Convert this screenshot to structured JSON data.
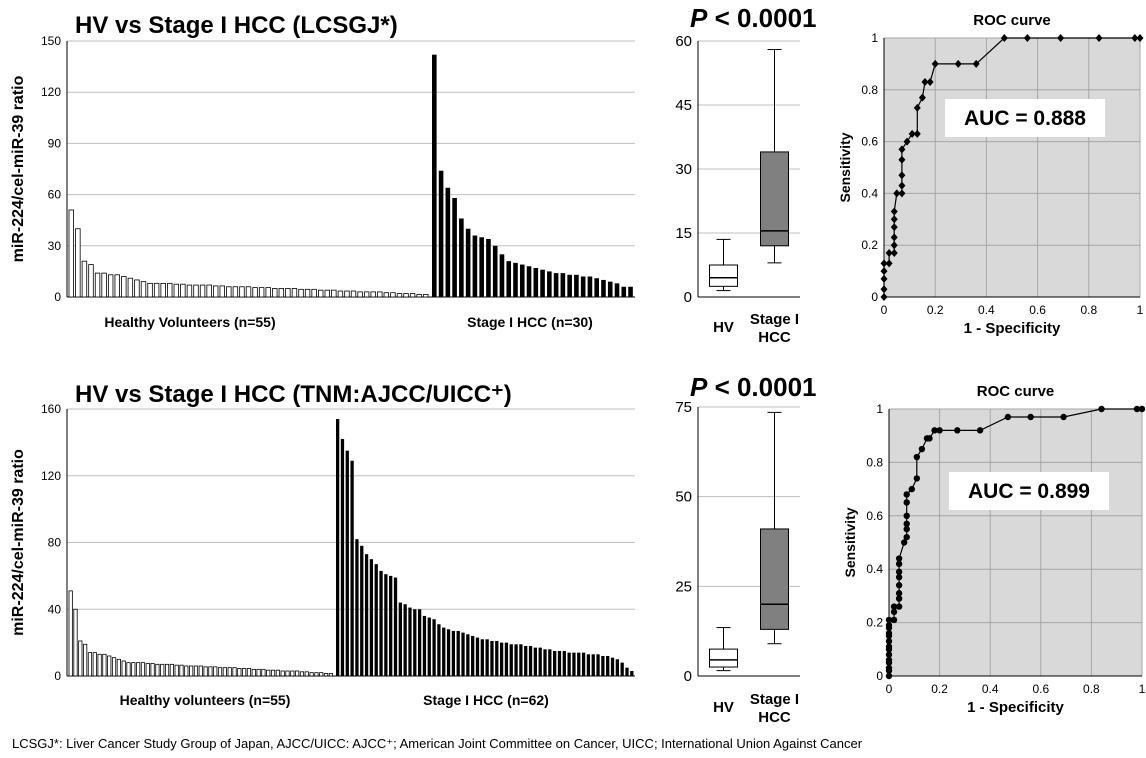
{
  "footnote": "LCSGJ*: Liver Cancer Study Group of Japan, AJCC/UICC: AJCC⁺; American Joint Committee on Cancer, UICC; International Union Against Cancer",
  "colors": {
    "hv_bar": "#ffffff",
    "hcc_bar": "#000000",
    "hcc_box": "#808080",
    "roc_bg": "#d9d9d9",
    "grid": "#bfbfbf"
  },
  "chart_data": [
    {
      "type": "bar",
      "title": "HV vs Stage I HCC (LCSGJ*)",
      "ylabel": "miR-224/cel-miR-39 ratio",
      "ylim": [
        0,
        150
      ],
      "yticks": [
        "0",
        "30",
        "60",
        "90",
        "120",
        "150"
      ],
      "grid": true,
      "series": [
        {
          "name": "Healthy Volunteers (n=55)",
          "values": [
            51,
            40,
            21,
            19,
            14,
            14,
            13,
            13,
            12,
            11,
            10,
            9,
            8,
            8,
            8,
            8,
            7.5,
            7.5,
            7,
            7,
            7,
            7,
            6.5,
            6.5,
            6,
            6,
            6,
            6,
            5.5,
            5.5,
            5.5,
            5,
            5,
            5,
            5,
            4.5,
            4.5,
            4.5,
            4,
            4,
            4,
            3.5,
            3.5,
            3.5,
            3,
            3,
            3,
            3,
            2.5,
            2.5,
            2,
            2,
            2,
            1.5,
            1.5
          ]
        },
        {
          "name": "Stage I HCC (n=30)",
          "values": [
            142,
            74,
            64,
            58,
            46,
            40,
            36,
            35,
            34,
            30,
            25,
            21,
            20,
            19,
            18,
            17,
            16,
            15,
            14,
            14,
            13,
            13,
            12,
            12,
            11,
            10,
            9,
            8,
            6,
            6
          ]
        }
      ]
    },
    {
      "type": "box",
      "title": "P < 0.0001",
      "ylim": [
        0,
        60
      ],
      "yticks": [
        "0",
        "15",
        "30",
        "45",
        "60"
      ],
      "categories": [
        "HV",
        "Stage I HCC"
      ],
      "boxes": [
        {
          "name": "HV",
          "min": 1.5,
          "q1": 2.5,
          "median": 4.5,
          "q3": 7.5,
          "max": 13.5
        },
        {
          "name": "Stage I HCC",
          "min": 8,
          "q1": 12,
          "median": 15.5,
          "q3": 34,
          "max": 58
        }
      ]
    },
    {
      "type": "line",
      "title": "ROC curve",
      "xlabel": "1 - Specificity",
      "ylabel": "Sensitivity",
      "xlim": [
        0,
        1
      ],
      "ylim": [
        0,
        1
      ],
      "xticks": [
        "0",
        "0.2",
        "0.4",
        "0.6",
        "0.8",
        "1"
      ],
      "yticks": [
        "0",
        "0.2",
        "0.4",
        "0.6",
        "0.8",
        "1"
      ],
      "annotation": "AUC = 0.888",
      "points": [
        [
          0,
          0
        ],
        [
          0,
          0.03
        ],
        [
          0,
          0.07
        ],
        [
          0,
          0.1
        ],
        [
          0,
          0.13
        ],
        [
          0.02,
          0.13
        ],
        [
          0.02,
          0.17
        ],
        [
          0.04,
          0.17
        ],
        [
          0.04,
          0.2
        ],
        [
          0.04,
          0.23
        ],
        [
          0.04,
          0.27
        ],
        [
          0.04,
          0.3
        ],
        [
          0.04,
          0.33
        ],
        [
          0.05,
          0.4
        ],
        [
          0.07,
          0.4
        ],
        [
          0.07,
          0.43
        ],
        [
          0.07,
          0.47
        ],
        [
          0.07,
          0.53
        ],
        [
          0.07,
          0.57
        ],
        [
          0.09,
          0.6
        ],
        [
          0.11,
          0.63
        ],
        [
          0.13,
          0.63
        ],
        [
          0.13,
          0.73
        ],
        [
          0.15,
          0.77
        ],
        [
          0.16,
          0.83
        ],
        [
          0.18,
          0.83
        ],
        [
          0.2,
          0.9
        ],
        [
          0.29,
          0.9
        ],
        [
          0.36,
          0.9
        ],
        [
          0.47,
          1
        ],
        [
          0.56,
          1
        ],
        [
          0.69,
          1
        ],
        [
          0.84,
          1
        ],
        [
          0.98,
          1
        ],
        [
          1,
          1
        ]
      ]
    },
    {
      "type": "bar",
      "title": "HV vs Stage I HCC (TNM:AJCC/UICC⁺)",
      "ylabel": "miR-224/cel-miR-39 ratio",
      "ylim": [
        0,
        160
      ],
      "yticks": [
        "0",
        "40",
        "80",
        "120",
        "160"
      ],
      "grid": true,
      "series": [
        {
          "name": "Healthy volunteers (n=55)",
          "values": [
            51,
            40,
            21,
            19,
            14,
            14,
            13,
            13,
            12,
            11,
            10,
            9,
            8,
            8,
            8,
            8,
            7.5,
            7.5,
            7,
            7,
            7,
            7,
            6.5,
            6.5,
            6,
            6,
            6,
            6,
            5.5,
            5.5,
            5.5,
            5,
            5,
            5,
            5,
            4.5,
            4.5,
            4.5,
            4,
            4,
            4,
            3.5,
            3.5,
            3.5,
            3,
            3,
            3,
            3,
            2.5,
            2.5,
            2,
            2,
            2,
            1.5,
            1.5
          ]
        },
        {
          "name": "Stage I HCC (n=62)",
          "values": [
            154,
            142,
            135,
            129,
            82,
            78,
            73,
            70,
            67,
            63,
            61,
            60,
            59,
            44,
            43,
            41,
            40,
            40,
            36,
            35,
            34,
            31,
            29,
            28,
            27,
            27,
            26,
            25,
            24,
            23,
            22,
            22,
            21,
            21,
            20,
            20,
            19,
            19,
            19,
            18,
            18,
            17,
            17,
            16,
            16,
            15,
            15,
            15,
            14,
            14,
            14,
            14,
            13,
            13,
            13,
            12,
            12,
            11,
            10,
            8,
            5,
            3
          ]
        }
      ]
    },
    {
      "type": "box",
      "title": "P < 0.0001",
      "ylim": [
        0,
        75
      ],
      "yticks": [
        "0",
        "25",
        "50",
        "75"
      ],
      "categories": [
        "HV",
        "Stage I HCC"
      ],
      "boxes": [
        {
          "name": "HV",
          "min": 1.5,
          "q1": 2.5,
          "median": 4.5,
          "q3": 7.5,
          "max": 13.5
        },
        {
          "name": "Stage I HCC",
          "min": 9,
          "q1": 13,
          "median": 20,
          "q3": 41,
          "max": 73.5
        }
      ]
    },
    {
      "type": "line",
      "title": "ROC curve",
      "xlabel": "1 - Specificity",
      "ylabel": "Sensitivity",
      "xlim": [
        0,
        1
      ],
      "ylim": [
        0,
        1
      ],
      "xticks": [
        "0",
        "0.2",
        "0.4",
        "0.6",
        "0.8",
        "1"
      ],
      "yticks": [
        "0",
        "0.2",
        "0.4",
        "0.6",
        "0.8",
        "1"
      ],
      "annotation": "AUC = 0.899",
      "points": [
        [
          0,
          0
        ],
        [
          0,
          0.02
        ],
        [
          0,
          0.03
        ],
        [
          0,
          0.05
        ],
        [
          0,
          0.06
        ],
        [
          0,
          0.08
        ],
        [
          0,
          0.1
        ],
        [
          0,
          0.11
        ],
        [
          0,
          0.13
        ],
        [
          0,
          0.15
        ],
        [
          0,
          0.16
        ],
        [
          0,
          0.18
        ],
        [
          0,
          0.19
        ],
        [
          0,
          0.21
        ],
        [
          0.02,
          0.21
        ],
        [
          0.02,
          0.24
        ],
        [
          0.02,
          0.26
        ],
        [
          0.04,
          0.26
        ],
        [
          0.04,
          0.29
        ],
        [
          0.04,
          0.31
        ],
        [
          0.04,
          0.34
        ],
        [
          0.04,
          0.37
        ],
        [
          0.04,
          0.39
        ],
        [
          0.04,
          0.42
        ],
        [
          0.04,
          0.44
        ],
        [
          0.06,
          0.5
        ],
        [
          0.07,
          0.52
        ],
        [
          0.07,
          0.55
        ],
        [
          0.07,
          0.57
        ],
        [
          0.07,
          0.6
        ],
        [
          0.07,
          0.65
        ],
        [
          0.07,
          0.68
        ],
        [
          0.09,
          0.7
        ],
        [
          0.11,
          0.74
        ],
        [
          0.11,
          0.82
        ],
        [
          0.13,
          0.85
        ],
        [
          0.15,
          0.89
        ],
        [
          0.16,
          0.89
        ],
        [
          0.18,
          0.92
        ],
        [
          0.2,
          0.92
        ],
        [
          0.27,
          0.92
        ],
        [
          0.36,
          0.92
        ],
        [
          0.47,
          0.97
        ],
        [
          0.56,
          0.97
        ],
        [
          0.69,
          0.97
        ],
        [
          0.84,
          1
        ],
        [
          0.98,
          1
        ],
        [
          1,
          1
        ]
      ]
    }
  ]
}
